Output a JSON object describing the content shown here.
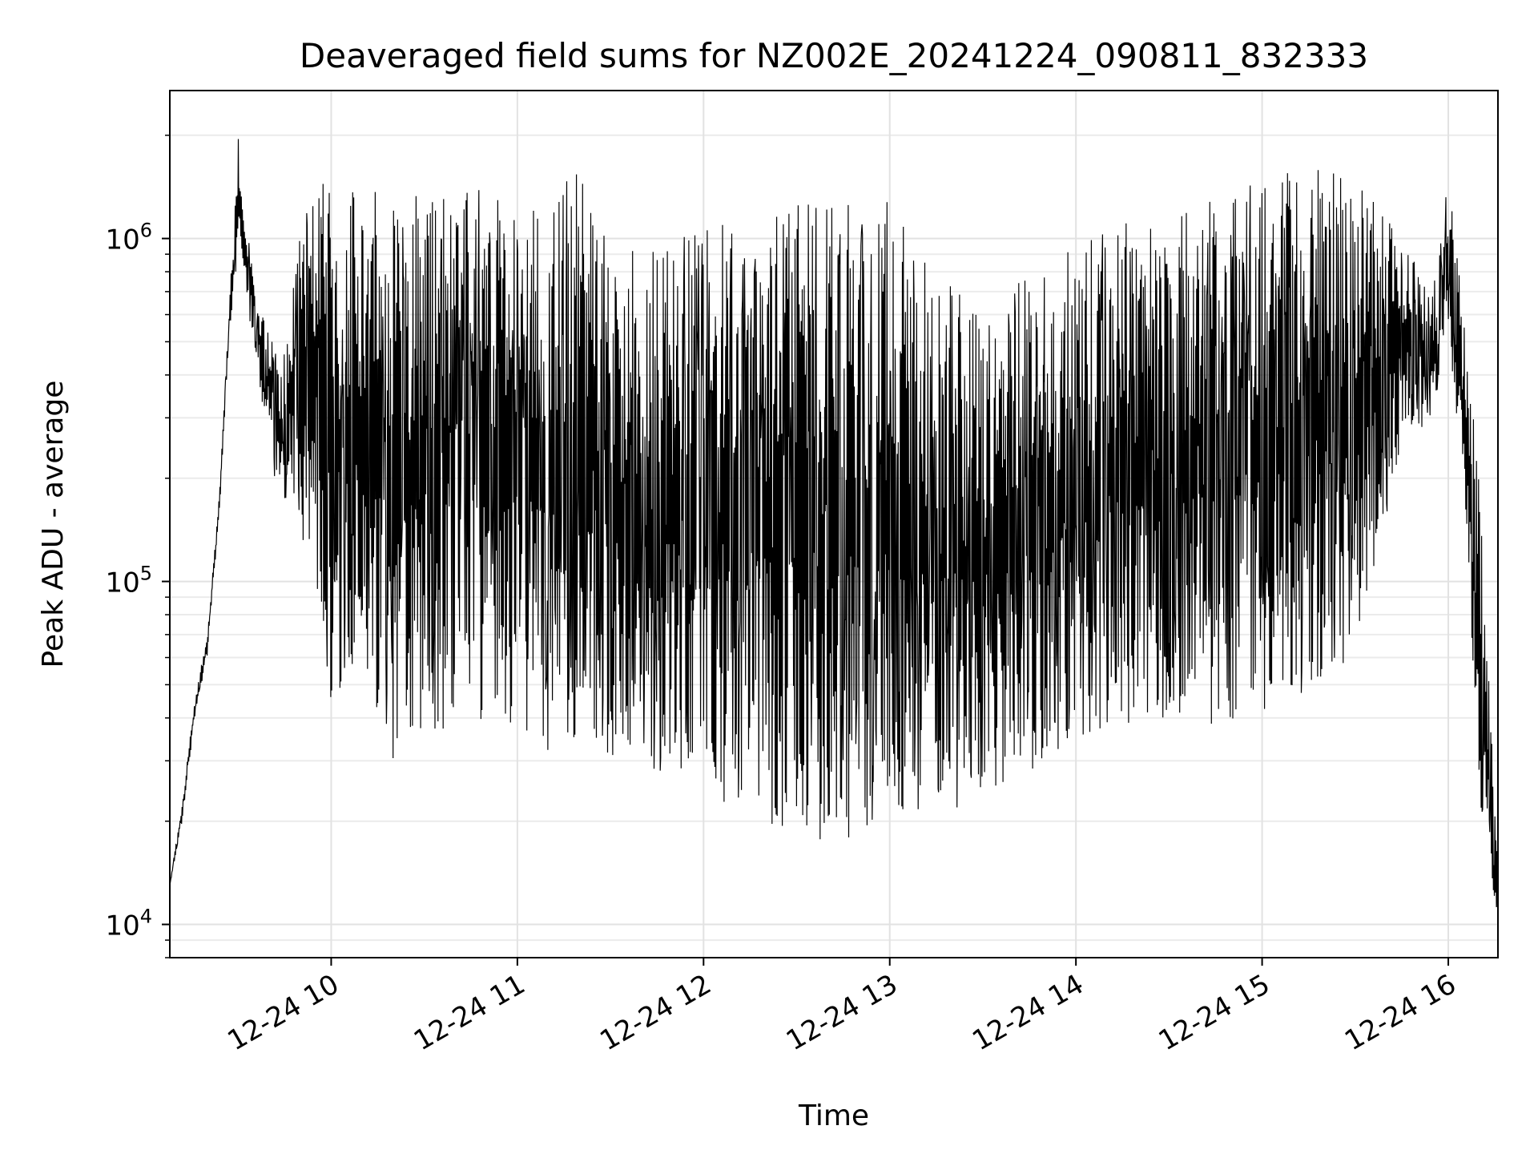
{
  "chart_data": {
    "type": "line",
    "title": "Deaveraged field sums for NZ002E_20241224_090811_832333",
    "xlabel": "Time",
    "ylabel": "Peak ADU - average",
    "x_scale": "time",
    "y_scale": "log",
    "xlim": [
      "12-24 09:08",
      "12-24 16:16"
    ],
    "ylim": [
      8000,
      2700000
    ],
    "x_ticks": [
      "12-24 10",
      "12-24 11",
      "12-24 12",
      "12-24 13",
      "12-24 14",
      "12-24 15",
      "12-24 16"
    ],
    "y_ticks": [
      {
        "base": "10",
        "exp": "4",
        "value": 10000
      },
      {
        "base": "10",
        "exp": "5",
        "value": 100000
      },
      {
        "base": "10",
        "exp": "6",
        "value": 1000000
      }
    ],
    "grid": true,
    "line_color": "#000000",
    "series": [
      {
        "x": [
          "12-24 09:08",
          "12-24 09:12",
          "12-24 09:16",
          "12-24 09:20",
          "12-24 09:24",
          "12-24 09:27",
          "12-24 09:30",
          "12-24 09:32",
          "12-24 09:34",
          "12-24 09:36",
          "12-24 09:40",
          "12-24 09:44",
          "12-24 09:48",
          "12-24 10:00",
          "12-24 10:10",
          "12-24 10:20",
          "12-24 10:30",
          "12-24 10:40",
          "12-24 10:50",
          "12-24 11:00",
          "12-24 11:10",
          "12-24 11:20",
          "12-24 11:30",
          "12-24 11:45",
          "12-24 12:00",
          "12-24 12:15",
          "12-24 12:30",
          "12-24 12:45",
          "12-24 13:00",
          "12-24 13:15",
          "12-24 13:30",
          "12-24 13:45",
          "12-24 14:00",
          "12-24 14:15",
          "12-24 14:30",
          "12-24 14:45",
          "12-24 15:00",
          "12-24 15:15",
          "12-24 15:30",
          "12-24 15:45",
          "12-24 15:55",
          "12-24 16:00",
          "12-24 16:05",
          "12-24 16:10",
          "12-24 16:16"
        ],
        "upper": [
          13000,
          23000,
          45000,
          70000,
          180000,
          600000,
          2000000,
          1050000,
          950000,
          650000,
          550000,
          420000,
          1000000,
          1700000,
          1500000,
          1400000,
          1400000,
          1350000,
          1400000,
          1200000,
          1250000,
          1800000,
          900000,
          1000000,
          1100000,
          1200000,
          1300000,
          1400000,
          1350000,
          800000,
          650000,
          900000,
          1000000,
          1100000,
          1200000,
          1300000,
          1500000,
          1600000,
          1550000,
          1000000,
          700000,
          1500000,
          650000,
          200000,
          15000
        ],
        "lower": [
          13000,
          20000,
          40000,
          60000,
          160000,
          500000,
          900000,
          800000,
          550000,
          450000,
          220000,
          180000,
          160000,
          45000,
          50000,
          30000,
          35000,
          38000,
          40000,
          38000,
          32000,
          35000,
          30000,
          28000,
          25000,
          20000,
          18000,
          17000,
          20000,
          21000,
          23000,
          28000,
          35000,
          38000,
          40000,
          38000,
          42000,
          48000,
          60000,
          250000,
          300000,
          500000,
          200000,
          20000,
          10000
        ]
      }
    ]
  }
}
